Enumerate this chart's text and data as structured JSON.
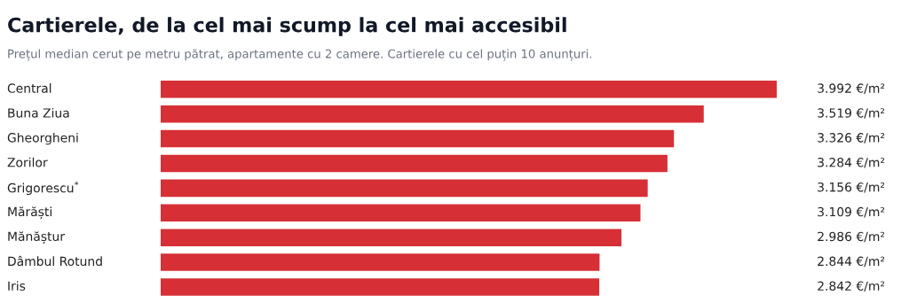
{
  "chart_data": {
    "type": "bar",
    "orientation": "horizontal",
    "title": "Cartierele, de la cel mai scump la cel mai accesibil",
    "subtitle": "Prețul median cerut pe metru pătrat, apartamente cu 2 camere. Cartierele cu cel puțin 10 anunțuri.",
    "categories": [
      "Central",
      "Buna Ziua",
      "Gheorgheni",
      "Zorilor",
      "Grigorescu$^{*}$",
      "Mărăști",
      "Mănăștur",
      "Dâmbul Rotund",
      "Iris"
    ],
    "values": [
      3992,
      3519,
      3326,
      3284,
      3156,
      3109,
      2986,
      2844,
      2842
    ],
    "value_labels": [
      "3.992 €/m²",
      "3.519 €/m²",
      "3.326 €/m²",
      "3.284 €/m²",
      "3.156 €/m²",
      "3.109 €/m²",
      "2.986 €/m²",
      "2.844 €/m²",
      "2.842 €/m²"
    ],
    "color": "#d63036"
  }
}
